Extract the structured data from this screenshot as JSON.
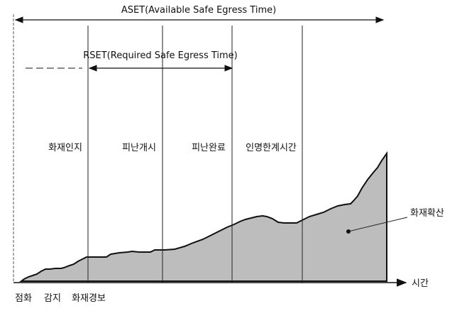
{
  "aset_label": "ASET(Available Safe Egress Time)",
  "rset_label": "RSET(Required Safe Egress Time)",
  "phases": [
    "화재인지",
    "피난개시",
    "피난완료",
    "인명한계시간"
  ],
  "spread_label": "화재확산",
  "time_axis_label": "시간",
  "events": [
    "점화",
    "감지",
    "화재경보"
  ],
  "colors": {
    "fill": "#bdbdbd",
    "line": "#111111"
  }
}
